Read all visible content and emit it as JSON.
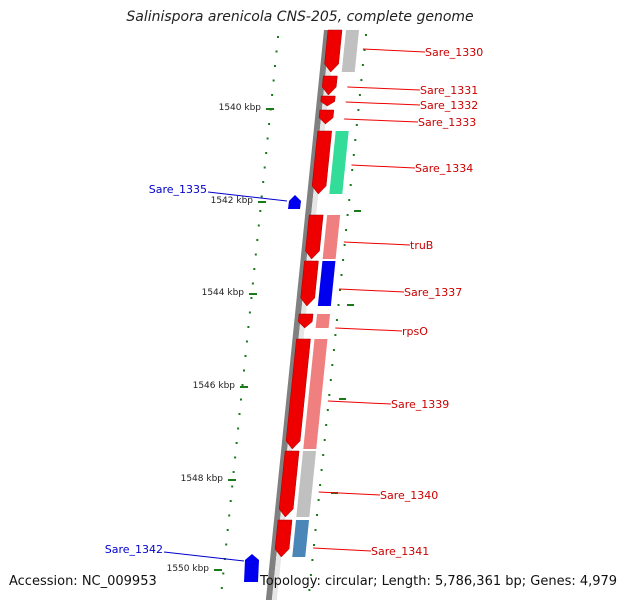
{
  "title": "Salinispora arenicola CNS-205, complete genome",
  "accession": "Accession: NC_009953",
  "topology": "Topology: circular; Length: 5,786,361 bp; Genes: 4,979",
  "colors": {
    "forward": "#ee0000",
    "reverse_label": "#0000cc",
    "axis": "#808080",
    "ticks": "#1a7a1a",
    "gray": "#c0c0c0",
    "pink": "#f08080",
    "teal": "#33dd99",
    "blue": "#0000ee",
    "steel": "#4a86b8"
  },
  "ruler": [
    {
      "label": "1540 kbp"
    },
    {
      "label": "1542 kbp"
    },
    {
      "label": "1544 kbp"
    },
    {
      "label": "1546 kbp"
    },
    {
      "label": "1548 kbp"
    },
    {
      "label": "1550 kbp"
    }
  ],
  "genes": [
    {
      "name": "Sare_1330",
      "strand": "forward",
      "cog": "gray"
    },
    {
      "name": "Sare_1331",
      "strand": "forward",
      "cog": "none"
    },
    {
      "name": "Sare_1332",
      "strand": "forward",
      "cog": "none"
    },
    {
      "name": "Sare_1333",
      "strand": "forward",
      "cog": "none"
    },
    {
      "name": "Sare_1334",
      "strand": "forward",
      "cog": "teal"
    },
    {
      "name": "Sare_1335",
      "strand": "reverse",
      "cog": "none"
    },
    {
      "name": "truB",
      "strand": "forward",
      "cog": "pink"
    },
    {
      "name": "Sare_1337",
      "strand": "forward",
      "cog": "blue"
    },
    {
      "name": "rpsO",
      "strand": "forward",
      "cog": "pink"
    },
    {
      "name": "Sare_1339",
      "strand": "forward",
      "cog": "pink"
    },
    {
      "name": "Sare_1340",
      "strand": "forward",
      "cog": "gray"
    },
    {
      "name": "Sare_1341",
      "strand": "forward",
      "cog": "steel"
    },
    {
      "name": "Sare_1342",
      "strand": "reverse",
      "cog": "none"
    }
  ]
}
